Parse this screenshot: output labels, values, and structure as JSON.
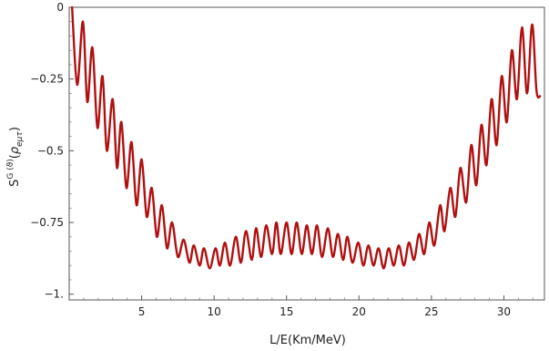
{
  "chart_data": {
    "type": "line",
    "xlabel": "L/E(Km/MeV)",
    "ylabel": {
      "base": "S",
      "superscript": "G (ϑ)",
      "argument": "ρ",
      "subscript": "eμτ"
    },
    "xlim": [
      0,
      32.8
    ],
    "ylim": [
      -1.02,
      0.0
    ],
    "x_ticks": [
      5,
      10,
      15,
      20,
      25,
      30
    ],
    "x_tick_labels": [
      "5",
      "10",
      "15",
      "20",
      "25",
      "30"
    ],
    "y_ticks": [
      0,
      -0.25,
      -0.5,
      -0.75,
      -1
    ],
    "y_tick_labels": [
      "0",
      "−0.25",
      "−0.5",
      "−0.75",
      "−1."
    ],
    "line_color": "#b01010",
    "series": [
      {
        "x": [
          0.2,
          0.55,
          0.95,
          1.25,
          1.6,
          1.95,
          2.3,
          2.6,
          3.0,
          3.3,
          3.6,
          3.95,
          4.3,
          4.65,
          5.0,
          5.35,
          5.7,
          6.05,
          6.4,
          6.75,
          7.1,
          7.5,
          7.9,
          8.3,
          8.6,
          9.0,
          9.3,
          9.7,
          10.1,
          10.4,
          10.75,
          11.1,
          11.5,
          11.85,
          12.2,
          12.6,
          12.9,
          13.25,
          13.6,
          14.0,
          14.3,
          14.6,
          15.0,
          15.35,
          15.7,
          16.05,
          16.4,
          16.75,
          17.1,
          17.45,
          17.85,
          18.2,
          18.55,
          18.9,
          19.2,
          19.55,
          19.95,
          20.3,
          20.65,
          21.0,
          21.35,
          21.7,
          22.05,
          22.4,
          22.75,
          23.1,
          23.45,
          23.8,
          24.15,
          24.5,
          24.85,
          25.2,
          25.6,
          25.9,
          26.3,
          26.65,
          27.0,
          27.4,
          27.75,
          28.1,
          28.45,
          28.8,
          29.15,
          29.5,
          29.85,
          30.2,
          30.55,
          30.9,
          31.25,
          31.6,
          31.95,
          32.25,
          32.5
        ],
        "y": [
          0.0,
          -0.27,
          -0.05,
          -0.33,
          -0.14,
          -0.42,
          -0.24,
          -0.5,
          -0.32,
          -0.56,
          -0.4,
          -0.63,
          -0.47,
          -0.69,
          -0.53,
          -0.73,
          -0.63,
          -0.8,
          -0.69,
          -0.84,
          -0.75,
          -0.87,
          -0.81,
          -0.89,
          -0.83,
          -0.9,
          -0.84,
          -0.91,
          -0.84,
          -0.9,
          -0.82,
          -0.9,
          -0.8,
          -0.89,
          -0.78,
          -0.88,
          -0.77,
          -0.87,
          -0.76,
          -0.86,
          -0.75,
          -0.86,
          -0.75,
          -0.86,
          -0.75,
          -0.86,
          -0.76,
          -0.86,
          -0.76,
          -0.87,
          -0.77,
          -0.87,
          -0.79,
          -0.88,
          -0.8,
          -0.89,
          -0.82,
          -0.9,
          -0.83,
          -0.9,
          -0.84,
          -0.91,
          -0.84,
          -0.9,
          -0.83,
          -0.9,
          -0.82,
          -0.88,
          -0.79,
          -0.86,
          -0.75,
          -0.83,
          -0.69,
          -0.78,
          -0.63,
          -0.73,
          -0.56,
          -0.68,
          -0.48,
          -0.62,
          -0.41,
          -0.55,
          -0.32,
          -0.48,
          -0.24,
          -0.4,
          -0.15,
          -0.32,
          -0.07,
          -0.3,
          -0.06,
          -0.29,
          -0.31
        ]
      }
    ]
  }
}
